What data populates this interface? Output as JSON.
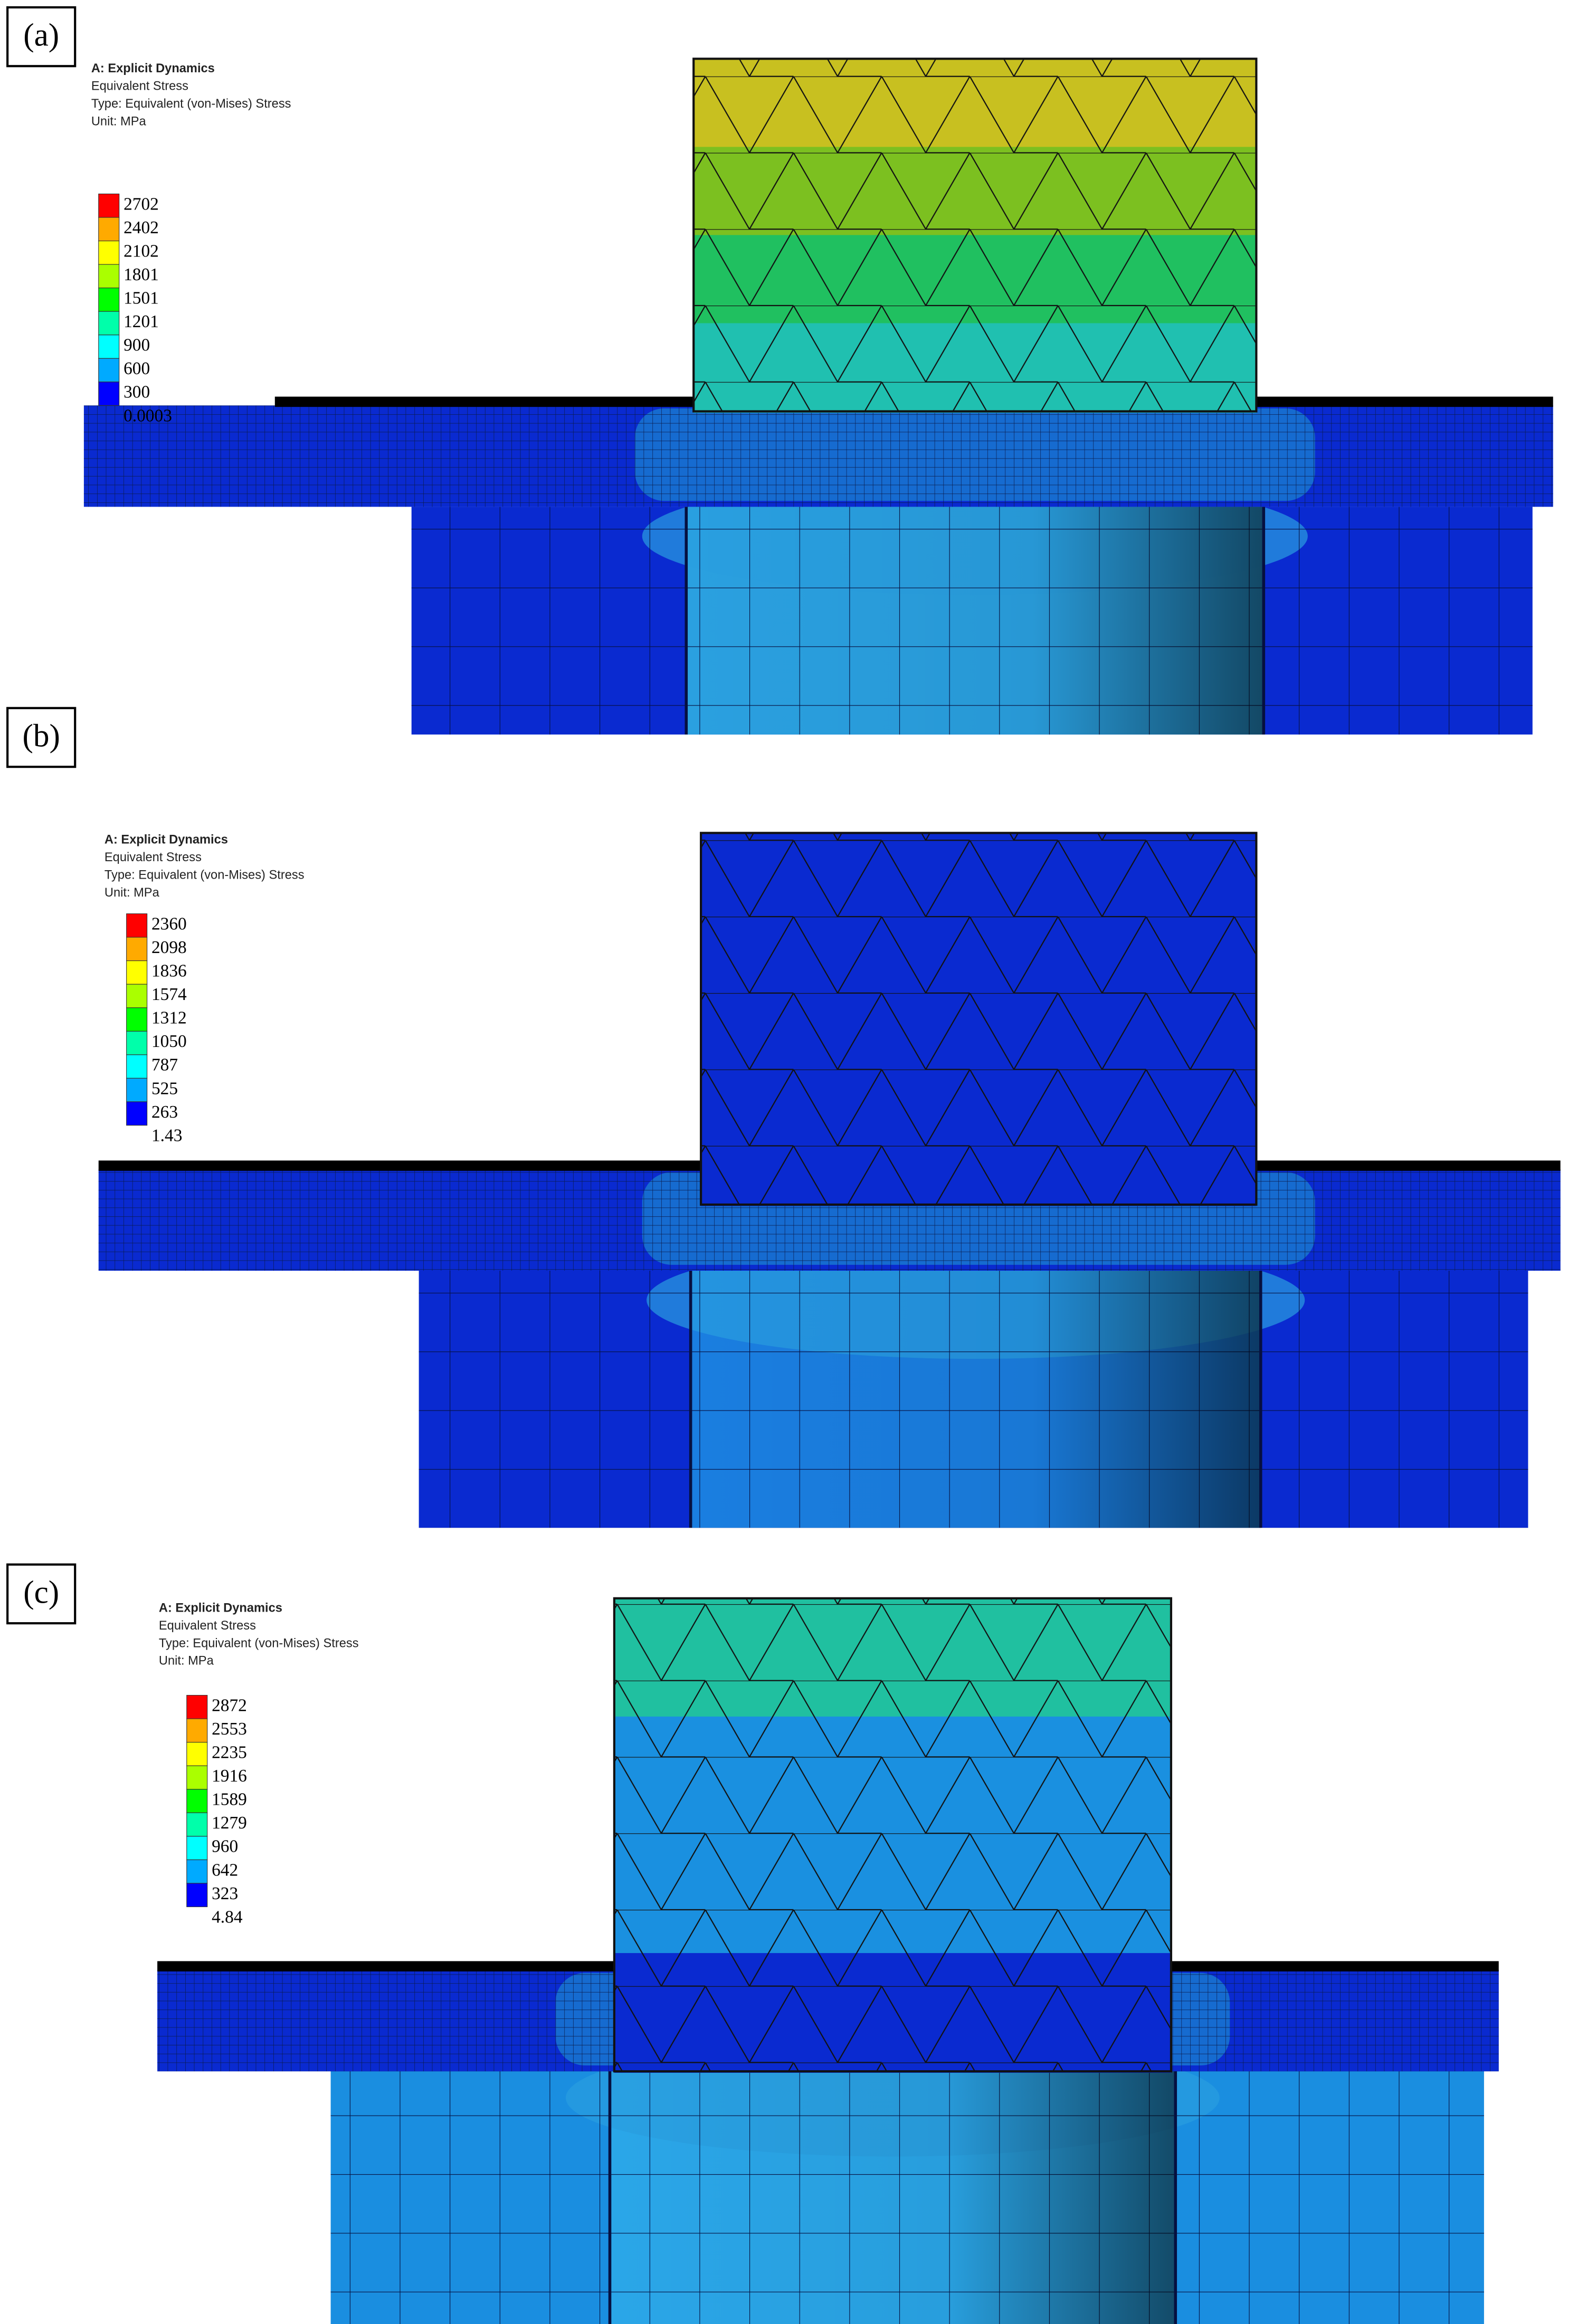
{
  "panels": [
    {
      "label": "(a)",
      "header": {
        "title": "A: Explicit Dynamics",
        "result": "Equivalent Stress",
        "type": "Type: Equivalent (von-Mises) Stress",
        "unit": "Unit: MPa"
      },
      "legend": [
        2702,
        2402,
        2102,
        1801,
        1501,
        1201,
        900,
        600,
        300,
        0.0003
      ]
    },
    {
      "label": "(b)",
      "header": {
        "title": "A: Explicit Dynamics",
        "result": "Equivalent Stress",
        "type": "Type: Equivalent (von-Mises) Stress",
        "unit": "Unit: MPa"
      },
      "legend": [
        2360,
        2098,
        1836,
        1574,
        1312,
        1050,
        787,
        525,
        263,
        1.43
      ]
    },
    {
      "label": "(c)",
      "header": {
        "title": "A: Explicit Dynamics",
        "result": "Equivalent Stress",
        "type": "Type: Equivalent (von-Mises) Stress",
        "unit": "Unit: MPa"
      },
      "legend": [
        2872,
        2553,
        2235,
        1916,
        1589,
        1279,
        960,
        642,
        323,
        4.84
      ]
    }
  ]
}
